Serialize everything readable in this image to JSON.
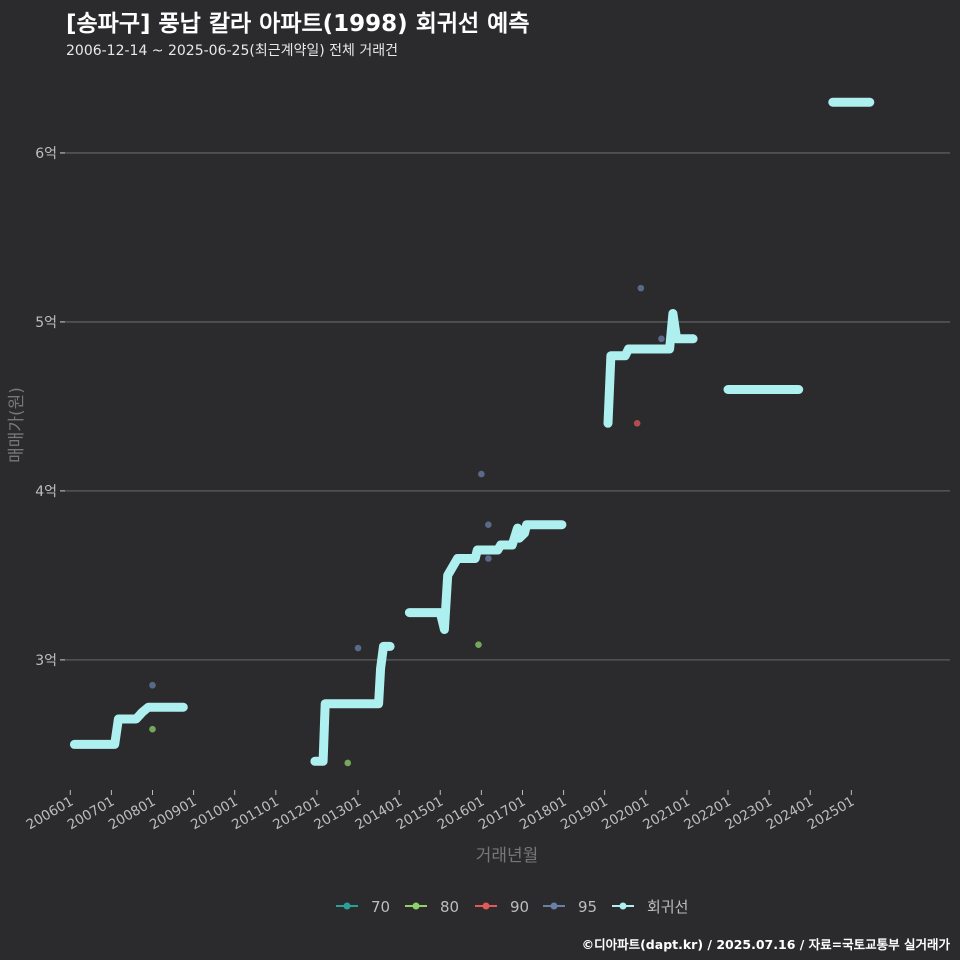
{
  "title": "[송파구] 풍납 칼라 아파트(1998) 회귀선 예측",
  "subtitle": "2006-12-14 ~ 2025-06-25(최근계약일) 전체 거래건",
  "credit": "©디아파트(dapt.kr) / 2025.07.16 / 자료=국토교통부 실거래가",
  "colors": {
    "background": "#2b2b2d",
    "grid": "#5c5c5e",
    "axis_text": "#bdbdbd",
    "regression": "#aef0f0",
    "series_70": "#2aa198",
    "series_80": "#8fd16a",
    "series_90": "#e05a5a",
    "series_95": "#6a7fa8"
  },
  "chart_data": {
    "type": "scatter",
    "xlabel": "거래년월",
    "ylabel": "매매가(원)",
    "xlim": [
      2005.75,
      2027.4
    ],
    "ylim": [
      2.23,
      6.55
    ],
    "x_ticks": [
      {
        "value": 2006.0,
        "label": "200601"
      },
      {
        "value": 2007.0,
        "label": "200701"
      },
      {
        "value": 2008.0,
        "label": "200801"
      },
      {
        "value": 2009.0,
        "label": "200901"
      },
      {
        "value": 2010.0,
        "label": "201001"
      },
      {
        "value": 2011.0,
        "label": "201101"
      },
      {
        "value": 2012.0,
        "label": "201201"
      },
      {
        "value": 2013.0,
        "label": "201301"
      },
      {
        "value": 2014.0,
        "label": "201401"
      },
      {
        "value": 2015.0,
        "label": "201501"
      },
      {
        "value": 2016.0,
        "label": "201601"
      },
      {
        "value": 2017.0,
        "label": "201701"
      },
      {
        "value": 2018.0,
        "label": "201801"
      },
      {
        "value": 2019.0,
        "label": "201901"
      },
      {
        "value": 2020.0,
        "label": "202001"
      },
      {
        "value": 2021.0,
        "label": "202101"
      },
      {
        "value": 2022.0,
        "label": "202201"
      },
      {
        "value": 2023.0,
        "label": "202301"
      },
      {
        "value": 2024.0,
        "label": "202401"
      },
      {
        "value": 2025.0,
        "label": "202501"
      }
    ],
    "y_ticks": [
      {
        "value": 3,
        "label": "3억"
      },
      {
        "value": 4,
        "label": "4억"
      },
      {
        "value": 5,
        "label": "5억"
      },
      {
        "value": 6,
        "label": "6억"
      }
    ],
    "legend": [
      {
        "key": "70",
        "label": "70"
      },
      {
        "key": "80",
        "label": "80"
      },
      {
        "key": "90",
        "label": "90"
      },
      {
        "key": "95",
        "label": "95"
      },
      {
        "key": "regression",
        "label": "회귀선"
      }
    ],
    "series": [
      {
        "name": "70",
        "points": []
      },
      {
        "name": "80",
        "points": [
          [
            2008.0,
            2.59
          ],
          [
            2012.75,
            2.39
          ],
          [
            2015.93,
            3.09
          ]
        ]
      },
      {
        "name": "90",
        "points": [
          [
            2019.79,
            4.4
          ]
        ]
      },
      {
        "name": "95",
        "points": [
          [
            2008.0,
            2.85
          ],
          [
            2013.0,
            3.07
          ],
          [
            2016.0,
            4.1
          ],
          [
            2016.17,
            3.8
          ],
          [
            2016.17,
            3.6
          ],
          [
            2019.88,
            5.2
          ],
          [
            2020.38,
            4.9
          ]
        ]
      }
    ],
    "regression": [
      [
        [
          2006.1,
          2.5
        ],
        [
          2007.08,
          2.5
        ],
        [
          2007.17,
          2.65
        ],
        [
          2007.6,
          2.65
        ],
        [
          2007.75,
          2.69
        ],
        [
          2007.9,
          2.72
        ],
        [
          2008.75,
          2.72
        ]
      ],
      [
        [
          2011.95,
          2.4
        ],
        [
          2012.15,
          2.4
        ],
        [
          2012.2,
          2.74
        ],
        [
          2013.5,
          2.74
        ],
        [
          2013.55,
          2.95
        ],
        [
          2013.62,
          3.08
        ],
        [
          2013.78,
          3.08
        ]
      ],
      [
        [
          2014.25,
          3.28
        ],
        [
          2015.0,
          3.28
        ],
        [
          2015.1,
          3.18
        ],
        [
          2015.18,
          3.5
        ],
        [
          2015.42,
          3.6
        ],
        [
          2015.85,
          3.6
        ],
        [
          2015.9,
          3.65
        ],
        [
          2016.4,
          3.65
        ],
        [
          2016.47,
          3.68
        ],
        [
          2016.75,
          3.68
        ],
        [
          2016.88,
          3.78
        ],
        [
          2016.92,
          3.72
        ],
        [
          2017.05,
          3.75
        ],
        [
          2017.1,
          3.8
        ],
        [
          2017.96,
          3.8
        ]
      ],
      [
        [
          2019.08,
          4.4
        ],
        [
          2019.15,
          4.8
        ],
        [
          2019.5,
          4.8
        ],
        [
          2019.58,
          4.84
        ],
        [
          2020.58,
          4.84
        ],
        [
          2020.66,
          5.05
        ],
        [
          2020.75,
          4.9
        ],
        [
          2021.15,
          4.9
        ]
      ],
      [
        [
          2022.0,
          4.6
        ],
        [
          2023.72,
          4.6
        ]
      ],
      [
        [
          2024.55,
          6.3
        ],
        [
          2025.45,
          6.3
        ]
      ]
    ]
  }
}
